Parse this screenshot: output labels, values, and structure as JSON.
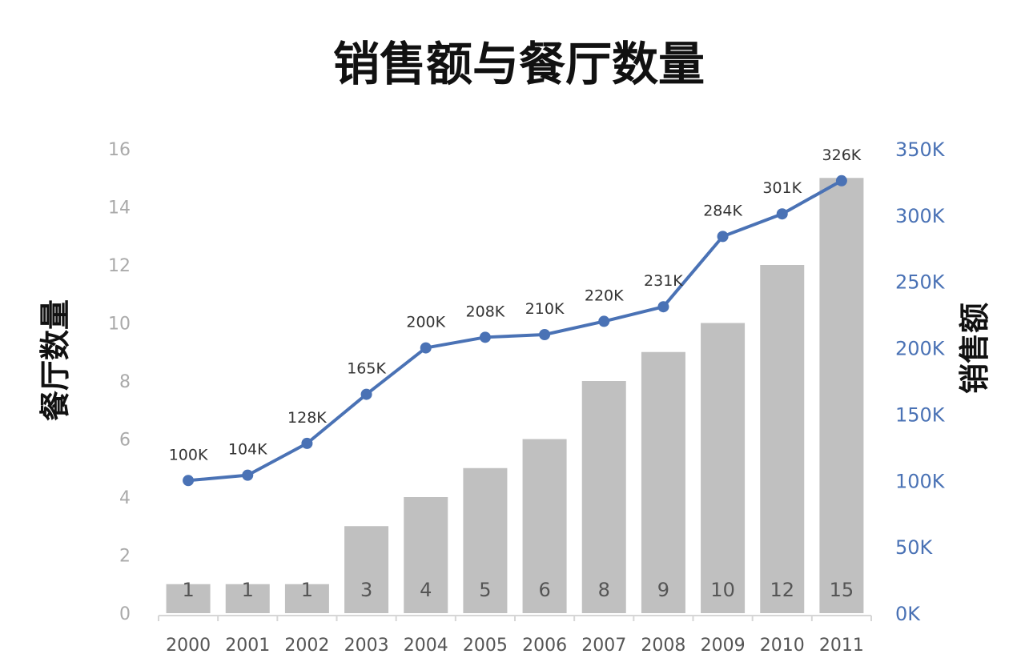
{
  "chart_data": {
    "type": "bar",
    "combo": "bar+line",
    "title": "销售额与餐厅数量",
    "ylabel_left": "餐厅数量",
    "ylabel_right": "销售额",
    "categories": [
      "2000",
      "2001",
      "2002",
      "2003",
      "2004",
      "2005",
      "2006",
      "2007",
      "2008",
      "2009",
      "2010",
      "2011"
    ],
    "ylim_left": [
      0,
      16
    ],
    "ylim_right": [
      0,
      350
    ],
    "left_ticks": [
      "0",
      "2",
      "4",
      "6",
      "8",
      "10",
      "12",
      "14",
      "16"
    ],
    "right_ticks": [
      "0K",
      "50K",
      "100K",
      "150K",
      "200K",
      "250K",
      "300K",
      "350K"
    ],
    "series": [
      {
        "kind": "bar",
        "axis": "left",
        "values": [
          1,
          1,
          1,
          3,
          4,
          5,
          6,
          8,
          9,
          10,
          12,
          15
        ],
        "labels": [
          "1",
          "1",
          "1",
          "3",
          "4",
          "5",
          "6",
          "8",
          "9",
          "10",
          "12",
          "15"
        ],
        "color": "#c0c0c0"
      },
      {
        "kind": "line",
        "axis": "right",
        "values": [
          100,
          104,
          128,
          165,
          200,
          208,
          210,
          220,
          231,
          284,
          301,
          326
        ],
        "labels": [
          "100K",
          "104K",
          "128K",
          "165K",
          "200K",
          "208K",
          "210K",
          "220K",
          "231K",
          "284K",
          "301K",
          "326K"
        ],
        "color": "#4a72b5"
      }
    ],
    "grid": false,
    "legend": "none"
  }
}
